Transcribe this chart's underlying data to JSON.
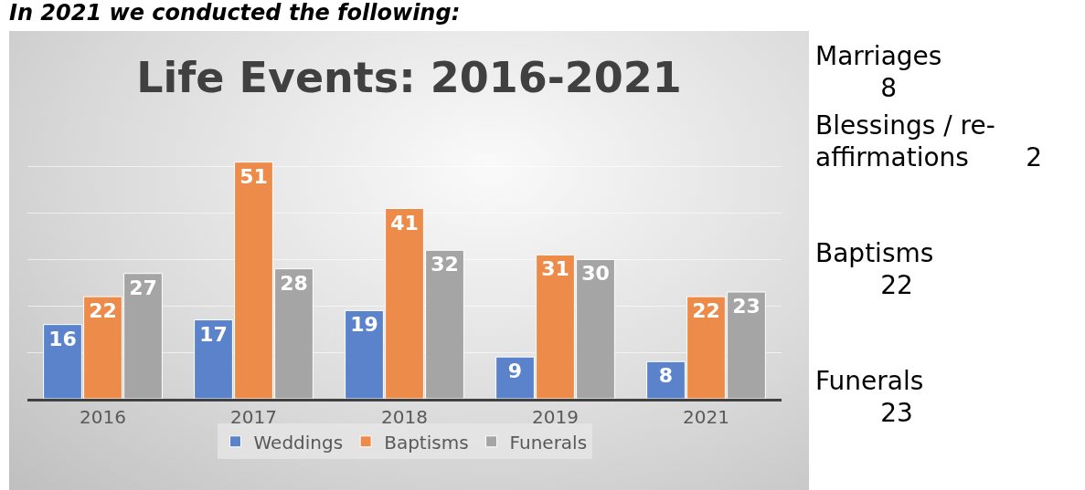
{
  "chart_data": {
    "type": "bar",
    "title": "Life Events: 2016-2021",
    "categories": [
      "2016",
      "2017",
      "2018",
      "2019",
      "2021"
    ],
    "series": [
      {
        "name": "Weddings",
        "color": "#5b83cc",
        "values": [
          16,
          17,
          19,
          9,
          8
        ]
      },
      {
        "name": "Baptisms",
        "color": "#ed8b4a",
        "values": [
          22,
          51,
          41,
          31,
          22
        ]
      },
      {
        "name": "Funerals",
        "color": "#a5a5a5",
        "values": [
          27,
          28,
          32,
          30,
          23
        ]
      }
    ],
    "data_labels": true,
    "grid": "y",
    "legend": "bottom",
    "annotations": [
      "In 2021 we conducted the following:",
      "Marriages\n        8",
      "Blessings / re-\naffirmations       2",
      "Baptisms\n        22",
      "Funerals\n        23"
    ]
  }
}
